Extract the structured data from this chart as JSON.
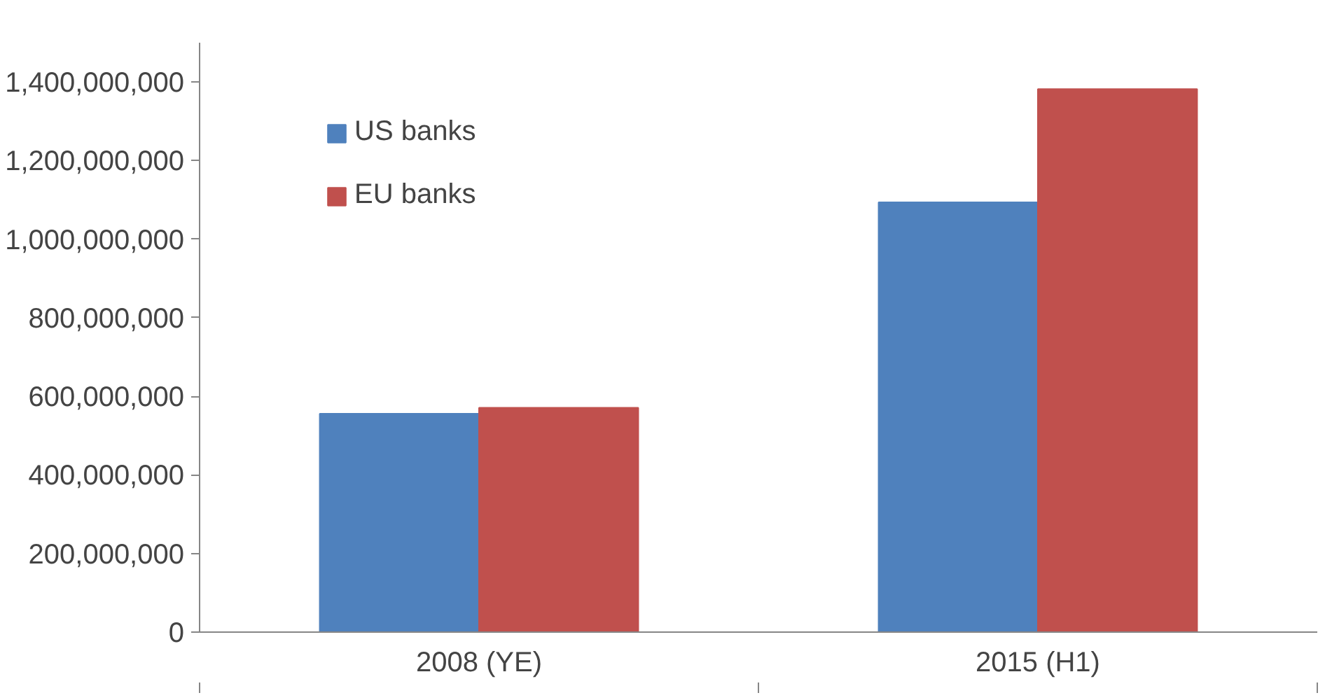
{
  "chart_data": {
    "type": "bar",
    "categories": [
      "2008 (YE)",
      "2015 (H1)"
    ],
    "series": [
      {
        "name": "US banks",
        "color": "#4f81bd",
        "values": [
          556000000,
          1094000000
        ]
      },
      {
        "name": "EU banks",
        "color": "#c0504d",
        "values": [
          571000000,
          1382000000
        ]
      }
    ],
    "ylim": [
      0,
      1500000000
    ],
    "yticks": [
      {
        "value": 0,
        "label": "0"
      },
      {
        "value": 200000000,
        "label": "200,000,000"
      },
      {
        "value": 400000000,
        "label": "400,000,000"
      },
      {
        "value": 600000000,
        "label": "600,000,000"
      },
      {
        "value": 800000000,
        "label": "800,000,000"
      },
      {
        "value": 1000000000,
        "label": "1,000,000,000"
      },
      {
        "value": 1200000000,
        "label": "1,200,000,000"
      },
      {
        "value": 1400000000,
        "label": "1,400,000,000"
      }
    ],
    "grid": false,
    "legend": "top left"
  }
}
